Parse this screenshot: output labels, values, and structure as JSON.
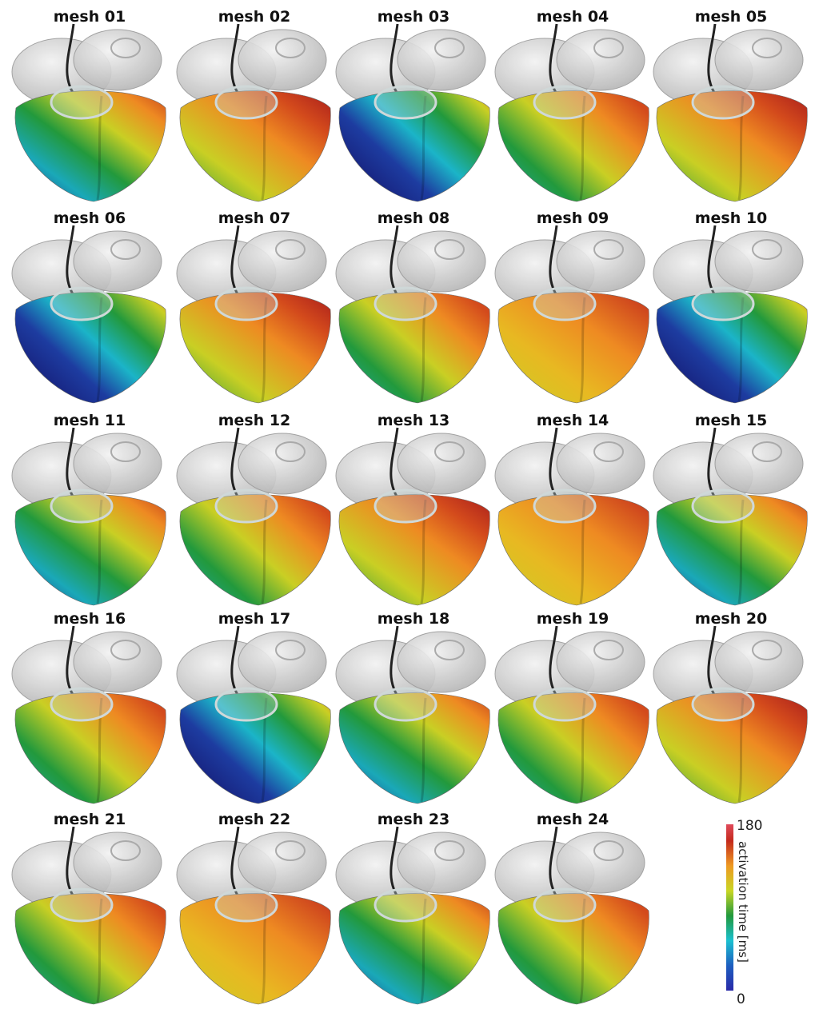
{
  "panels": [
    {
      "label": "mesh 01"
    },
    {
      "label": "mesh 02"
    },
    {
      "label": "mesh 03"
    },
    {
      "label": "mesh 04"
    },
    {
      "label": "mesh 05"
    },
    {
      "label": "mesh 06"
    },
    {
      "label": "mesh 07"
    },
    {
      "label": "mesh 08"
    },
    {
      "label": "mesh 09"
    },
    {
      "label": "mesh 10"
    },
    {
      "label": "mesh 11"
    },
    {
      "label": "mesh 12"
    },
    {
      "label": "mesh 13"
    },
    {
      "label": "mesh 14"
    },
    {
      "label": "mesh 15"
    },
    {
      "label": "mesh 16"
    },
    {
      "label": "mesh 17"
    },
    {
      "label": "mesh 18"
    },
    {
      "label": "mesh 19"
    },
    {
      "label": "mesh 20"
    },
    {
      "label": "mesh 21"
    },
    {
      "label": "mesh 22"
    },
    {
      "label": "mesh 23"
    },
    {
      "label": "mesh 24"
    }
  ],
  "colorbar": {
    "label": "activation time [ms]",
    "ticks": [
      0,
      180
    ]
  }
}
